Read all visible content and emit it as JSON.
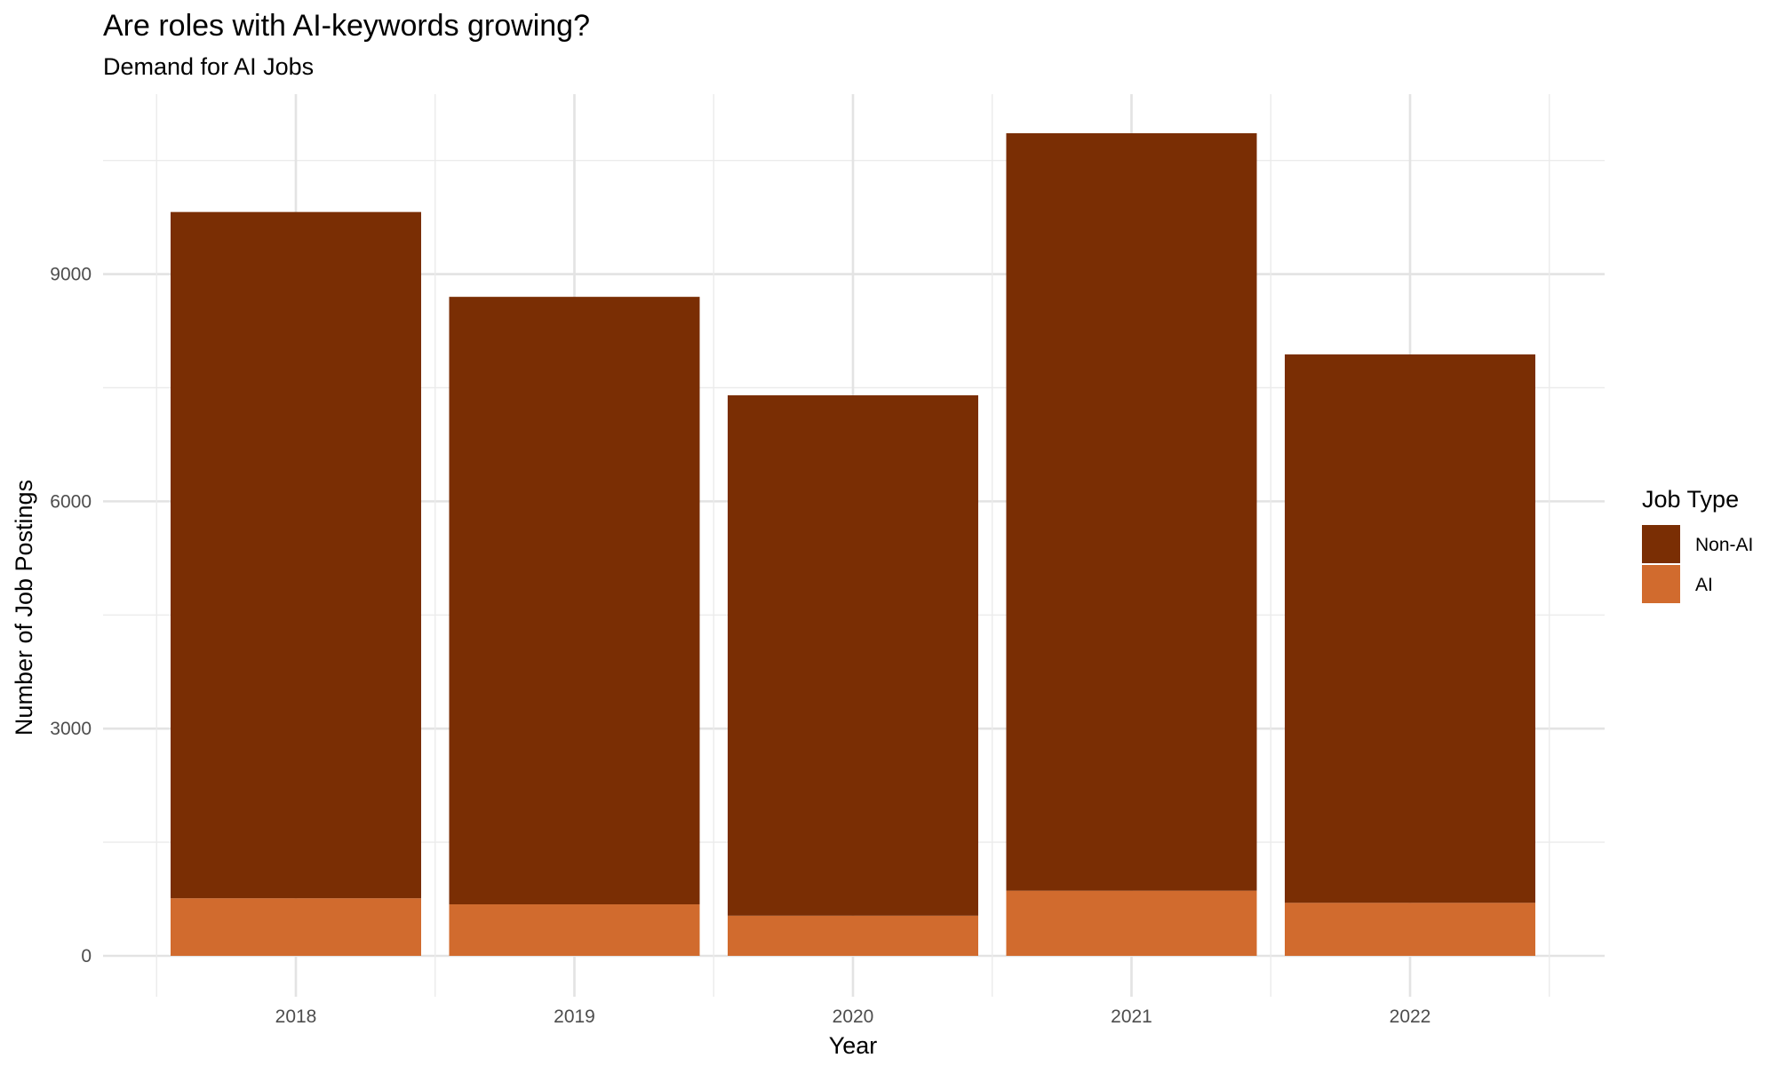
{
  "chart_data": {
    "type": "bar",
    "stacked": true,
    "title": "Are roles with AI-keywords growing?",
    "subtitle": "Demand for AI Jobs",
    "xlabel": "Year",
    "ylabel": "Number of Job Postings",
    "categories": [
      "2018",
      "2019",
      "2020",
      "2021",
      "2022"
    ],
    "series": [
      {
        "name": "AI",
        "color": "#d16b2e",
        "values": [
          760,
          680,
          530,
          860,
          700
        ]
      },
      {
        "name": "Non-AI",
        "color": "#7a2e04",
        "values": [
          9060,
          8020,
          6870,
          10000,
          7240
        ]
      }
    ],
    "ylim": [
      0,
      11000
    ],
    "yticks": [
      0,
      3000,
      6000,
      9000
    ],
    "yticks_minor": [
      1500,
      4500,
      7500,
      10500
    ],
    "grid": true,
    "legend": {
      "title": "Job Type",
      "position": "right",
      "entries": [
        {
          "label": "Non-AI",
          "color": "#7a2e04"
        },
        {
          "label": "AI",
          "color": "#d16b2e"
        }
      ]
    }
  }
}
